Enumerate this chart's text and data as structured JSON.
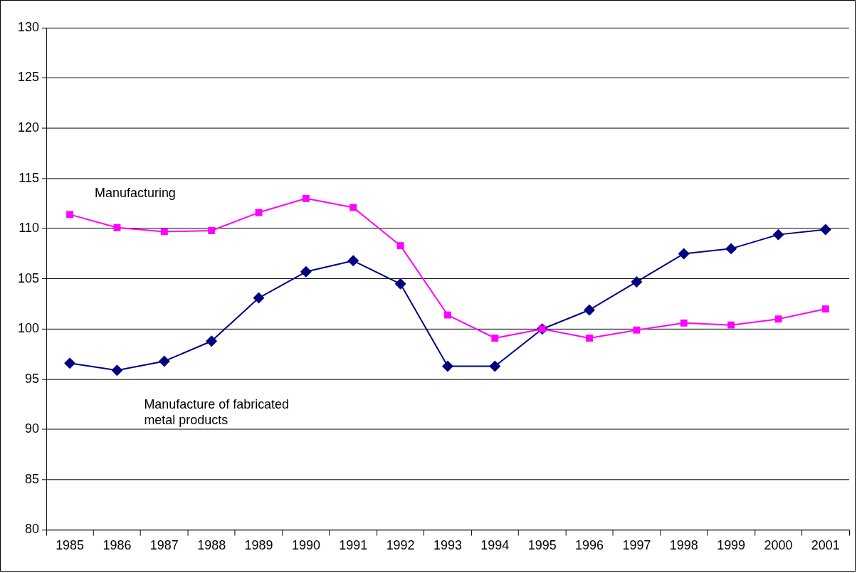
{
  "chart_data": {
    "type": "line",
    "categories": [
      "1985",
      "1986",
      "1987",
      "1988",
      "1989",
      "1990",
      "1991",
      "1992",
      "1993",
      "1994",
      "1995",
      "1996",
      "1997",
      "1998",
      "1999",
      "2000",
      "2001"
    ],
    "series": [
      {
        "name": "Manufacturing",
        "color": "#ff00ff",
        "marker": "square",
        "values": [
          111.4,
          110.1,
          109.7,
          109.8,
          111.6,
          113.0,
          112.1,
          108.3,
          101.4,
          99.1,
          100.0,
          99.1,
          99.9,
          100.6,
          100.4,
          101.0,
          102.0
        ]
      },
      {
        "name": "Manufacture of fabricated metal products",
        "color": "#000080",
        "marker": "diamond",
        "values": [
          96.6,
          95.9,
          96.8,
          98.8,
          103.1,
          105.7,
          106.8,
          104.5,
          96.3,
          96.3,
          100.0,
          101.9,
          104.7,
          107.5,
          108.0,
          109.4,
          109.9
        ]
      }
    ],
    "ylim": [
      80,
      130
    ],
    "yticks": [
      80,
      85,
      90,
      95,
      100,
      105,
      110,
      115,
      120,
      125,
      130
    ],
    "grid": "y",
    "legend": false,
    "line_style": "solid"
  }
}
